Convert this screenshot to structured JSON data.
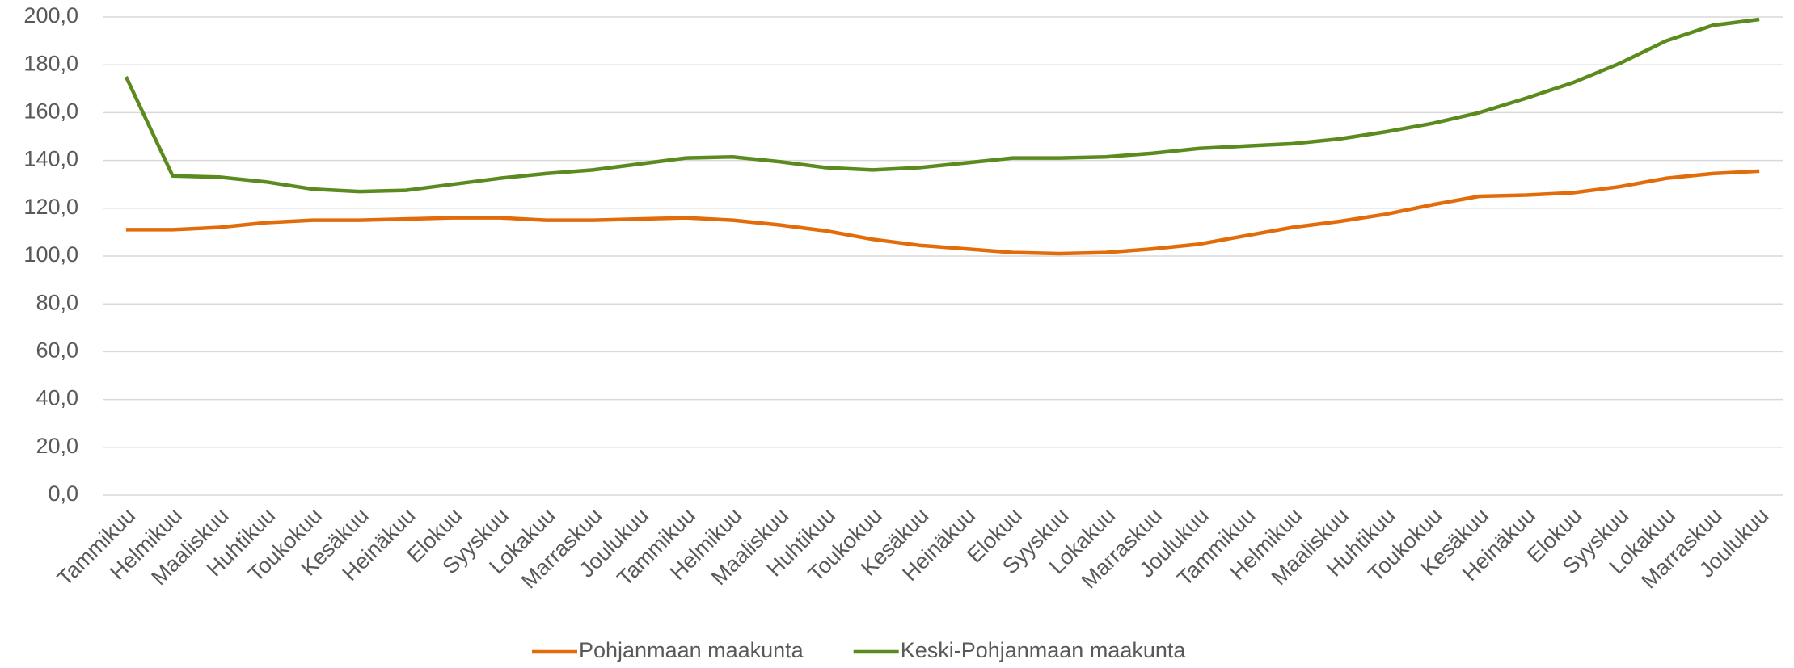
{
  "chart_data": {
    "type": "line",
    "categories": [
      "Tammikuu",
      "Helmikuu",
      "Maaliskuu",
      "Huhtikuu",
      "Toukokuu",
      "Kesäkuu",
      "Heinäkuu",
      "Elokuu",
      "Syyskuu",
      "Lokakuu",
      "Marraskuu",
      "Joulukuu",
      "Tammikuu",
      "Helmikuu",
      "Maaliskuu",
      "Huhtikuu",
      "Toukokuu",
      "Kesäkuu",
      "Heinäkuu",
      "Elokuu",
      "Syyskuu",
      "Lokakuu",
      "Marraskuu",
      "Joulukuu",
      "Tammikuu",
      "Helmikuu",
      "Maaliskuu",
      "Huhtikuu",
      "Toukokuu",
      "Kesäkuu",
      "Heinäkuu",
      "Elokuu",
      "Syyskuu",
      "Lokakuu",
      "Marraskuu",
      "Joulukuu"
    ],
    "series": [
      {
        "name": "Pohjanmaan maakunta",
        "color": "#e36c0a",
        "values": [
          111,
          111,
          112,
          114,
          115,
          115,
          115.5,
          116,
          116,
          115,
          115,
          115.5,
          116,
          115,
          113,
          110.5,
          107,
          104.5,
          103,
          101.5,
          101,
          101.5,
          103,
          105,
          108.5,
          112,
          114.5,
          117.5,
          121.5,
          125,
          125.5,
          126.5,
          129,
          132.5,
          134.5,
          135.5
        ]
      },
      {
        "name": "Keski-Pohjanmaan maakunta",
        "color": "#5b8a1e",
        "values": [
          175,
          133.5,
          133,
          131,
          128,
          127,
          127.5,
          130,
          132.5,
          134.5,
          136,
          138.5,
          141,
          141.5,
          139.5,
          137,
          136,
          137,
          139,
          141,
          141,
          141.5,
          143,
          145,
          146,
          147,
          149,
          152,
          155.5,
          160,
          166,
          172.5,
          180.5,
          190,
          196.5,
          199
        ]
      }
    ],
    "ylim": [
      0,
      200
    ],
    "yticks": [
      {
        "value": 0,
        "label": "0,0"
      },
      {
        "value": 20,
        "label": "20,0"
      },
      {
        "value": 40,
        "label": "40,0"
      },
      {
        "value": 60,
        "label": "60,0"
      },
      {
        "value": 80,
        "label": "80,0"
      },
      {
        "value": 100,
        "label": "100,0"
      },
      {
        "value": 120,
        "label": "120,0"
      },
      {
        "value": 140,
        "label": "140,0"
      },
      {
        "value": 160,
        "label": "160,0"
      },
      {
        "value": 180,
        "label": "180,0"
      },
      {
        "value": 200,
        "label": "200,0"
      }
    ],
    "grid": true,
    "legend": "bottom"
  }
}
